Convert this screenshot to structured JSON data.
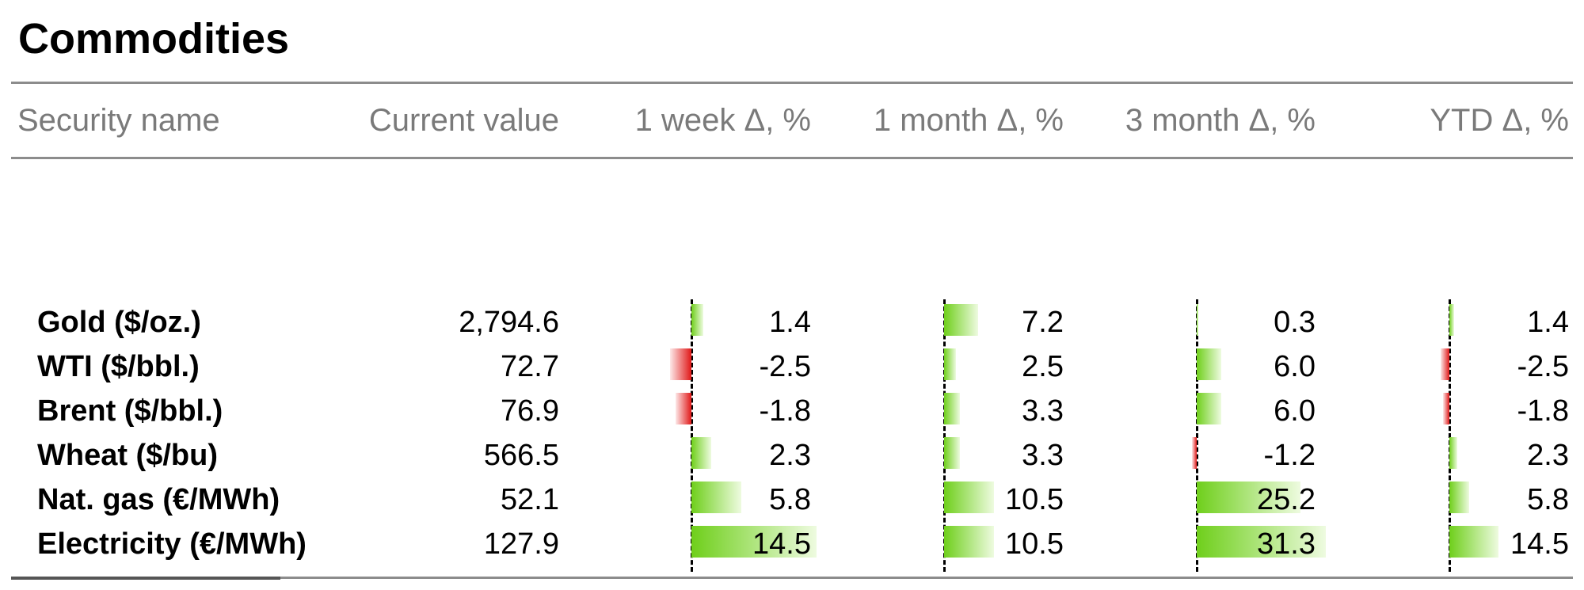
{
  "title": "Commodities",
  "chart_data": {
    "type": "table",
    "columns": [
      "Security name",
      "Current value",
      "1 week Δ, %",
      "1 month Δ, %",
      "3 month Δ, %",
      "YTD Δ, %"
    ],
    "rows": [
      {
        "name": "Gold ($/oz.)",
        "current": "2,794.6",
        "week": 1.4,
        "month": 7.2,
        "three_month": 0.3,
        "ytd": 1.4
      },
      {
        "name": "WTI ($/bbl.)",
        "current": "72.7",
        "week": -2.5,
        "month": 2.5,
        "three_month": 6.0,
        "ytd": -2.5
      },
      {
        "name": "Brent ($/bbl.)",
        "current": "76.9",
        "week": -1.8,
        "month": 3.3,
        "three_month": 6.0,
        "ytd": -1.8
      },
      {
        "name": "Wheat ($/bu)",
        "current": "566.5",
        "week": 2.3,
        "month": 3.3,
        "three_month": -1.2,
        "ytd": 2.3
      },
      {
        "name": "Nat. gas (€/MWh)",
        "current": "52.1",
        "week": 5.8,
        "month": 10.5,
        "three_month": 25.2,
        "ytd": 5.8
      },
      {
        "name": "Electricity (€/MWh)",
        "current": "127.9",
        "week": 14.5,
        "month": 10.5,
        "three_month": 31.3,
        "ytd": 14.5
      }
    ],
    "colors": {
      "positive": "#6fcf1b",
      "negative": "#e01818"
    }
  }
}
